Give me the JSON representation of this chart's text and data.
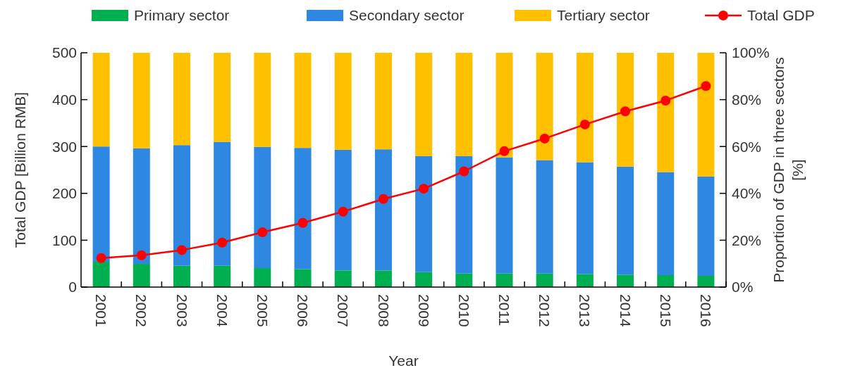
{
  "chart_data": {
    "type": "bar",
    "stacked": true,
    "xlabel": "Year",
    "ylabel": "Total GDP [Billion RMB]",
    "y2label": "Proportion of GDP in three sectors [%]",
    "categories": [
      "2001",
      "2002",
      "2003",
      "2004",
      "2005",
      "2006",
      "2007",
      "2008",
      "2009",
      "2010",
      "2011",
      "2012",
      "2013",
      "2014",
      "2015",
      "2016"
    ],
    "series": [
      {
        "name": "Primary sector",
        "color": "#00b050",
        "axis": "y2",
        "values": [
          10.8,
          9.9,
          9.1,
          9.1,
          8.1,
          7.7,
          7.1,
          7.1,
          6.4,
          5.8,
          5.8,
          5.8,
          5.6,
          5.3,
          5.1,
          4.8
        ]
      },
      {
        "name": "Secondary sector",
        "color": "#2e88e2",
        "axis": "y2",
        "values": [
          49.2,
          49.3,
          51.5,
          52.9,
          51.7,
          51.7,
          51.5,
          51.7,
          49.5,
          50.1,
          49.6,
          48.4,
          47.7,
          46.1,
          44.0,
          42.4
        ]
      },
      {
        "name": "Tertiary sector",
        "color": "#ffc000",
        "axis": "y2",
        "values": [
          40.0,
          40.8,
          39.4,
          38.0,
          40.2,
          40.6,
          41.4,
          41.2,
          44.1,
          44.1,
          44.6,
          45.8,
          46.7,
          48.6,
          50.9,
          52.8
        ]
      },
      {
        "name": "Total GDP",
        "type": "line",
        "color": "#ff0000",
        "marker": "circle",
        "values": [
          62,
          68,
          79,
          95,
          117,
          137,
          161,
          188,
          210,
          247,
          290,
          317,
          347,
          375,
          398,
          429
        ]
      }
    ],
    "ylim": [
      0,
      500
    ],
    "yticks": [
      0,
      100,
      200,
      300,
      400,
      500
    ],
    "y2lim": [
      0,
      100
    ],
    "y2ticks": [
      {
        "value": 0,
        "label": "0%"
      },
      {
        "value": 20,
        "label": "20%"
      },
      {
        "value": 40,
        "label": "40%"
      },
      {
        "value": 60,
        "label": "60%"
      },
      {
        "value": 80,
        "label": "80%"
      },
      {
        "value": 100,
        "label": "100%"
      }
    ],
    "legend": "top"
  }
}
